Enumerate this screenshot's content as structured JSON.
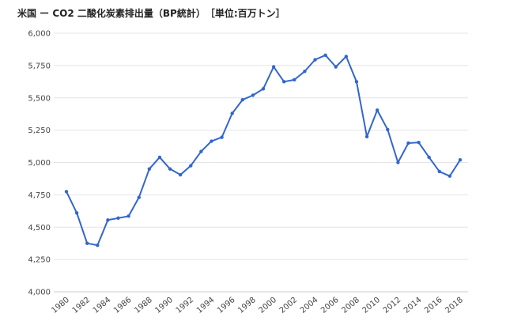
{
  "chart_data": {
    "type": "line",
    "title": "米国 ー CO2 二酸化炭素排出量（BP統計）　［単位:百万トン］",
    "xlabel": "",
    "ylabel": "",
    "x_tick_labels": [
      "1980",
      "1982",
      "1984",
      "1986",
      "1988",
      "1990",
      "1992",
      "1994",
      "1996",
      "1998",
      "2000",
      "2002",
      "2004",
      "2006",
      "2008",
      "2010",
      "2012",
      "2014",
      "2016",
      "2018"
    ],
    "y_tick_labels": [
      "4,000",
      "4,250",
      "4,500",
      "4,750",
      "5,000",
      "5,250",
      "5,500",
      "5,750",
      "6,000"
    ],
    "y_ticks": [
      4000,
      4250,
      4500,
      4750,
      5000,
      5250,
      5500,
      5750,
      6000
    ],
    "ylim": [
      4000,
      6000
    ],
    "grid": true,
    "legend": "none",
    "line_color": "#3366cc",
    "series": [
      {
        "x": [
          1980,
          1981,
          1982,
          1983,
          1984,
          1985,
          1986,
          1987,
          1988,
          1989,
          1990,
          1991,
          1992,
          1993,
          1994,
          1995,
          1996,
          1997,
          1998,
          1999,
          2000,
          2001,
          2002,
          2003,
          2004,
          2005,
          2006,
          2007,
          2008,
          2009,
          2010,
          2011,
          2012,
          2013,
          2014,
          2015,
          2016,
          2017,
          2018
        ],
        "values": [
          4775,
          4610,
          4375,
          4360,
          4555,
          4570,
          4585,
          4730,
          4950,
          5040,
          4950,
          4905,
          4975,
          5085,
          5165,
          5195,
          5380,
          5485,
          5520,
          5570,
          5740,
          5625,
          5640,
          5705,
          5795,
          5830,
          5740,
          5820,
          5625,
          5200,
          5405,
          5255,
          5000,
          5150,
          5155,
          5040,
          4930,
          4895,
          5020
        ]
      }
    ]
  }
}
